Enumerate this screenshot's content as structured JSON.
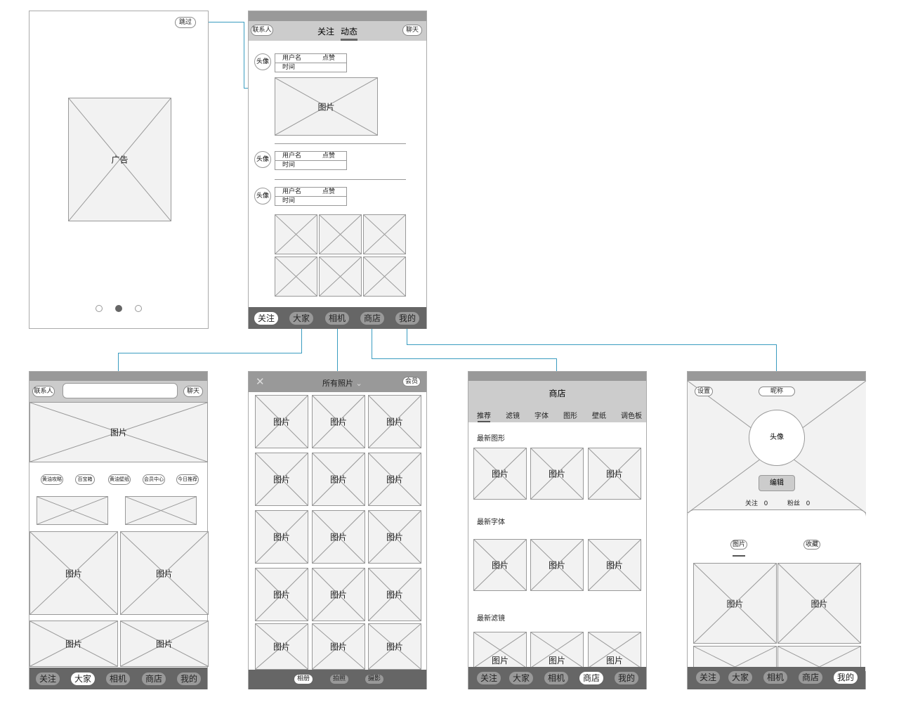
{
  "image_label": "图片",
  "connector_color": "#3a9cc0",
  "splash": {
    "skip": "跳过",
    "ad": "广告",
    "dots": 3,
    "active_dot": 2
  },
  "feed": {
    "contacts": "联系人",
    "tab_follow": "关注",
    "tab_moments": "动态",
    "chat": "聊天",
    "avatar": "头像",
    "username": "用户名",
    "like": "点赞",
    "time": "时间"
  },
  "bottom_nav": [
    "关注",
    "大家",
    "相机",
    "商店",
    "我的"
  ],
  "everyone": {
    "contacts": "联系人",
    "search_placeholder": "",
    "chat": "聊天",
    "chips": [
      "黄油攻略",
      "百宝箱",
      "黄油壁纸",
      "会员中心",
      "今日推荐"
    ]
  },
  "photos": {
    "close_icon": "close-icon",
    "title": "所有照片",
    "member": "会员",
    "tabs": [
      "相册",
      "拍照",
      "摄影"
    ],
    "active_tab": "相册"
  },
  "store": {
    "title": "商店",
    "tabs": [
      "推荐",
      "滤镜",
      "字体",
      "图形",
      "壁纸",
      "调色板"
    ],
    "active_tab": "推荐",
    "sections": [
      "最新图形",
      "最新字体",
      "最新滤镜"
    ]
  },
  "profile": {
    "settings": "设置",
    "nickname": "昵称",
    "avatar": "头像",
    "edit": "编辑",
    "following_label": "关注",
    "following": "0",
    "fans_label": "粉丝",
    "fans": "0",
    "tabs": [
      "图片",
      "收藏"
    ],
    "active_tab": "图片"
  }
}
